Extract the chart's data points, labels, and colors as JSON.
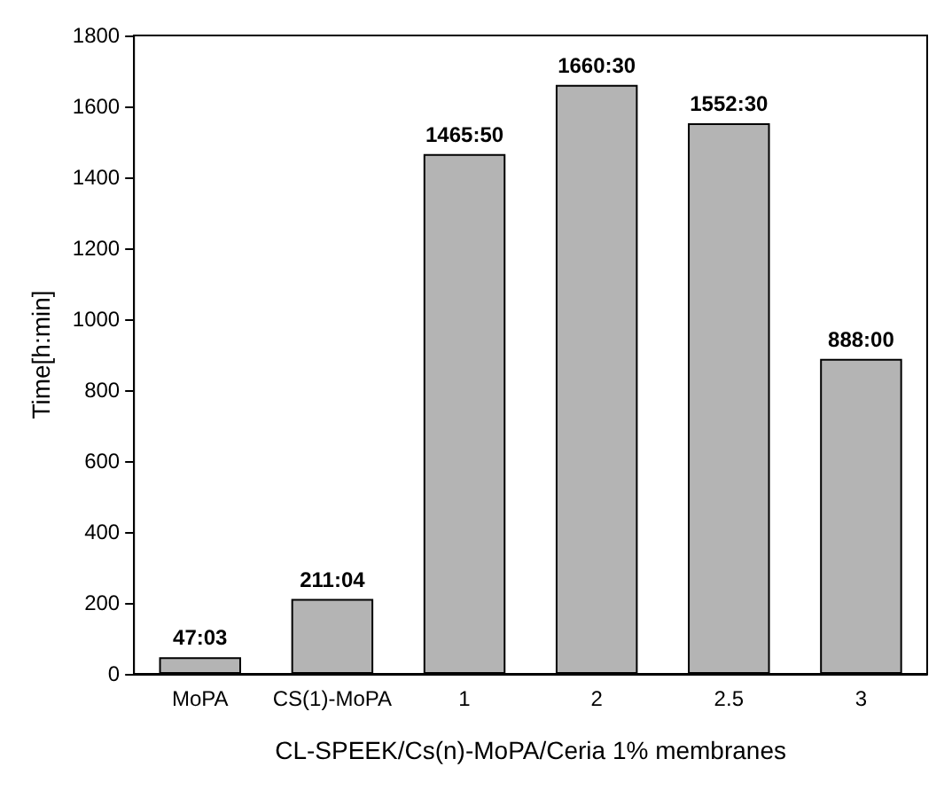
{
  "chart_data": {
    "type": "bar",
    "xlabel": "CL-SPEEK/Cs(n)-MoPA/Ceria 1% membranes",
    "ylabel": "Time[h:min]",
    "categories": [
      "MoPA",
      "CS(1)-MoPA",
      "1",
      "2",
      "2.5",
      "3"
    ],
    "values": [
      47.05,
      211.07,
      1465.83,
      1660.5,
      1552.5,
      888
    ],
    "value_labels": [
      "47:03",
      "211:04",
      "1465:50",
      "1660:30",
      "1552:30",
      "888:00"
    ],
    "color": "#b4b4b4",
    "ylim": [
      0,
      1800
    ],
    "yticks": [
      0,
      200,
      400,
      600,
      800,
      1000,
      1200,
      1400,
      1600,
      1800
    ],
    "grid": false
  }
}
